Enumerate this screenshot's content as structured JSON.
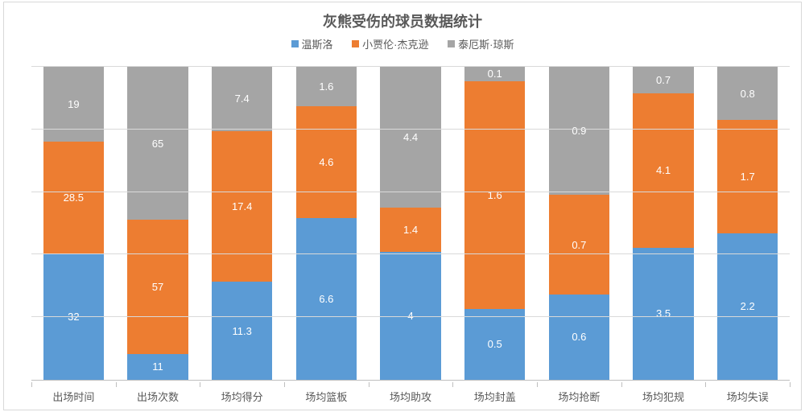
{
  "chart": {
    "type": "stacked-bar-100pct",
    "title": "灰熊受伤的球员数据统计",
    "title_fontsize": 18,
    "title_color": "#595959",
    "background_color": "#ffffff",
    "border_color": "#d9d9d9",
    "grid_color": "#d9d9d9",
    "axis_color": "#bfbfbf",
    "text_color": "#595959",
    "label_fontsize": 13,
    "datalabel_fontsize": 13,
    "datalabel_color": "#ffffff",
    "legend_fontsize": 13,
    "legend_position": "top",
    "bar_width_ratio": 0.72,
    "gridline_count": 5,
    "ylim_pct": [
      0,
      100
    ],
    "series": [
      {
        "name": "温斯洛",
        "color": "#5b9bd5"
      },
      {
        "name": "小贾伦·杰克逊",
        "color": "#ed7d31"
      },
      {
        "name": "泰厄斯·琼斯",
        "color": "#a5a5a5"
      }
    ],
    "categories": [
      {
        "label": "出场时间",
        "values": [
          32,
          28.5,
          19
        ]
      },
      {
        "label": "出场次数",
        "values": [
          11,
          57,
          65
        ]
      },
      {
        "label": "场均得分",
        "values": [
          11.3,
          17.4,
          7.4
        ]
      },
      {
        "label": "场均篮板",
        "values": [
          6.6,
          4.6,
          1.6
        ]
      },
      {
        "label": "场均助攻",
        "values": [
          4,
          1.4,
          4.4
        ]
      },
      {
        "label": "场均封盖",
        "values": [
          0.5,
          1.6,
          0.1
        ]
      },
      {
        "label": "场均抢断",
        "values": [
          0.6,
          0.7,
          0.9
        ]
      },
      {
        "label": "场均犯规",
        "values": [
          3.5,
          4.1,
          0.7
        ]
      },
      {
        "label": "场均失误",
        "values": [
          2.2,
          1.7,
          0.8
        ]
      }
    ]
  }
}
